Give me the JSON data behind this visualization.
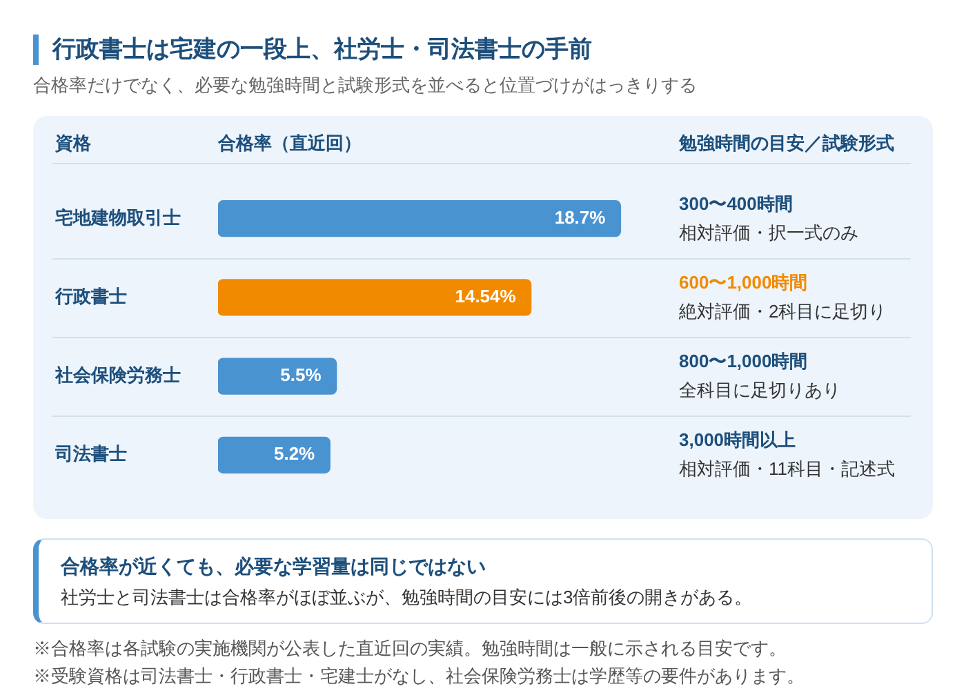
{
  "chart_data": {
    "type": "bar",
    "orientation": "horizontal",
    "title": "行政書士は宅建の一段上、社労士・司法書士の手前",
    "subtitle": "合格率だけでなく、必要な勉強時間と試験形式を並べると位置づけがはっきりする",
    "ylabel": "資格",
    "xlabel": "合格率（直近回）",
    "categories": [
      "宅地建物取引士",
      "行政書士",
      "社会保険労務士",
      "司法書士"
    ],
    "values": [
      18.7,
      14.54,
      5.5,
      5.2
    ],
    "colors": [
      "#4a93d1",
      "#f28a00",
      "#4a93d1",
      "#4a93d1"
    ],
    "value_labels": [
      "18.7%",
      "14.54%",
      "5.5%",
      "5.2%"
    ],
    "tick_labels": "y",
    "grid": "y",
    "annotations": [
      "勉強時間の目安／試験形式",
      "300〜400時間",
      "相対評価・択一式のみ",
      "600〜1,000時間",
      "絶対評価・2科目に足切り",
      "800〜1,000時間",
      "全科目に足切りあり",
      "3,000時間以上",
      "相対評価・11科目・記述式",
      "合格率が近くても、必要な学習量は同じではない",
      "社労士と司法書士は合格率がほぼ並ぶが、勉強時間の目安には3倍前後の開きがある。",
      "※合格率は各試験の実施機関が公表した直近回の実績。勉強時間は一般に示される目安です。",
      "※受験資格は司法書士・行政書士・宅建士がなし、社会保険労務士は学歴等の要件があります。"
    ]
  }
}
